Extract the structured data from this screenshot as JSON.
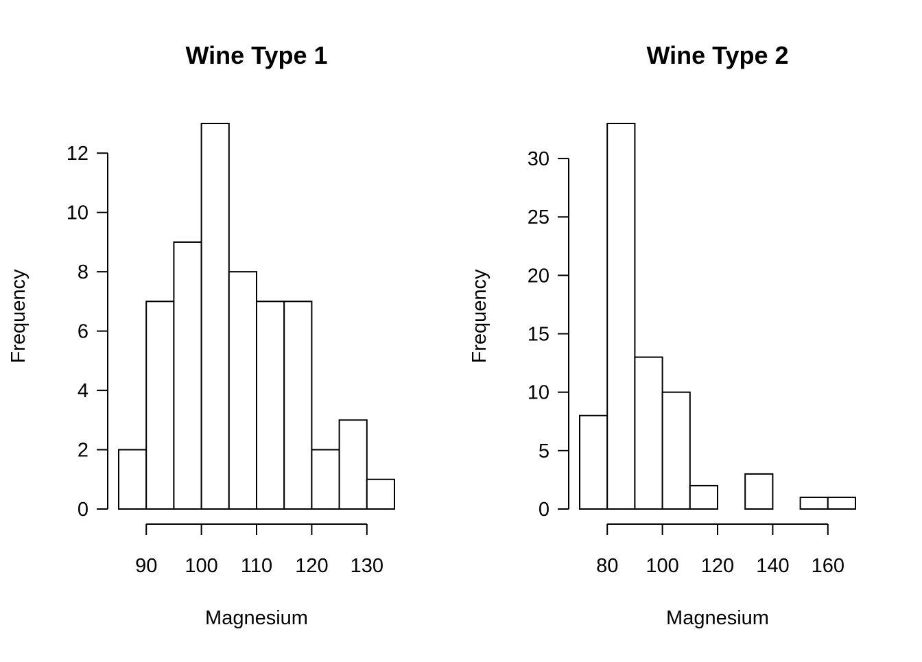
{
  "chart_data": [
    {
      "type": "histogram",
      "title": "Wine Type 1",
      "xlabel": "Magnesium",
      "ylabel": "Frequency",
      "bin_width": 5,
      "bins": [
        {
          "start": 85,
          "end": 90,
          "count": 2
        },
        {
          "start": 90,
          "end": 95,
          "count": 7
        },
        {
          "start": 95,
          "end": 100,
          "count": 9
        },
        {
          "start": 100,
          "end": 105,
          "count": 13
        },
        {
          "start": 105,
          "end": 110,
          "count": 8
        },
        {
          "start": 110,
          "end": 115,
          "count": 7
        },
        {
          "start": 115,
          "end": 120,
          "count": 7
        },
        {
          "start": 120,
          "end": 125,
          "count": 2
        },
        {
          "start": 125,
          "end": 130,
          "count": 3
        },
        {
          "start": 130,
          "end": 135,
          "count": 1
        }
      ],
      "xlim": [
        85,
        135
      ],
      "ylim": [
        0,
        13
      ],
      "x_ticks": [
        90,
        100,
        110,
        120,
        130
      ],
      "y_ticks": [
        0,
        2,
        4,
        6,
        8,
        10,
        12
      ],
      "grid": false
    },
    {
      "type": "histogram",
      "title": "Wine Type 2",
      "xlabel": "Magnesium",
      "ylabel": "Frequency",
      "bin_width": 10,
      "bins": [
        {
          "start": 70,
          "end": 80,
          "count": 8
        },
        {
          "start": 80,
          "end": 90,
          "count": 33
        },
        {
          "start": 90,
          "end": 100,
          "count": 13
        },
        {
          "start": 100,
          "end": 110,
          "count": 10
        },
        {
          "start": 110,
          "end": 120,
          "count": 2
        },
        {
          "start": 120,
          "end": 130,
          "count": 0
        },
        {
          "start": 130,
          "end": 140,
          "count": 3
        },
        {
          "start": 140,
          "end": 150,
          "count": 0
        },
        {
          "start": 150,
          "end": 160,
          "count": 1
        },
        {
          "start": 160,
          "end": 170,
          "count": 1
        }
      ],
      "xlim": [
        70,
        170
      ],
      "ylim": [
        0,
        33
      ],
      "x_ticks": [
        80,
        100,
        120,
        140,
        160
      ],
      "y_ticks": [
        0,
        5,
        10,
        15,
        20,
        25,
        30
      ],
      "grid": false
    }
  ]
}
